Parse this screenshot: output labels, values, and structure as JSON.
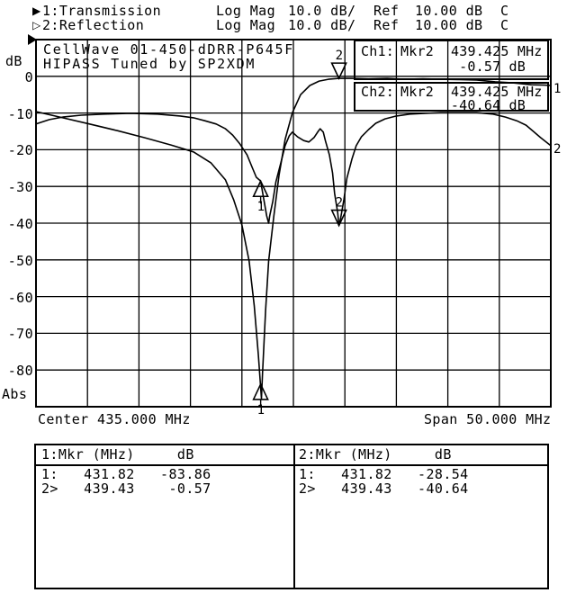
{
  "header": {
    "rows": [
      {
        "icon_glyph": "▶",
        "icon_name": "filled-right-triangle",
        "label": "1:Transmission",
        "format": "Log Mag",
        "scale": "10.0 dB/",
        "ref_label": "Ref",
        "ref_value": "10.00 dB",
        "status": "C"
      },
      {
        "icon_glyph": "▷",
        "icon_name": "open-right-triangle",
        "label": "2:Reflection",
        "format": "Log Mag",
        "scale": "10.0 dB/",
        "ref_label": "Ref",
        "ref_value": "10.00 dB",
        "status": "C"
      }
    ]
  },
  "plot": {
    "title_line1": "CellWave 01-450-dDRR-P645F",
    "title_line2": "HIPASS Tuned by SP2XDM",
    "y_axis_unit": "dB",
    "y_axis_bottom_label": "Abs",
    "x_axis_left": "Center 435.000 MHz",
    "x_axis_right": "Span 50.000 MHz",
    "annotations": [
      {
        "ch": "Ch1:",
        "mkr": "Mkr2",
        "freq": "439.425 MHz",
        "value": "-0.57 dB"
      },
      {
        "ch": "Ch2:",
        "mkr": "Mkr2",
        "freq": "439.425 MHz",
        "value": "-40.64 dB"
      }
    ]
  },
  "marker_table": {
    "left": {
      "header": "1:Mkr (MHz)     dB",
      "rows": [
        "1:   431.82   -83.86",
        "2>   439.43    -0.57"
      ]
    },
    "right": {
      "header": "2:Mkr (MHz)     dB",
      "rows": [
        "1:   431.82   -28.54",
        "2>   439.43   -40.64"
      ]
    }
  },
  "colors": {
    "foreground": "#000000",
    "background": "#ffffff"
  },
  "chart_data": {
    "type": "line",
    "title": "CellWave 01-450-dDRR-P645F HIPASS Tuned by SP2XDM",
    "x_axis": {
      "label_left": "Center 435.000 MHz",
      "label_right": "Span 50.000 MHz",
      "center_MHz": 435.0,
      "span_MHz": 50.0,
      "min_MHz": 410.0,
      "max_MHz": 460.0,
      "divisions": 10
    },
    "y_axis": {
      "unit": "dB",
      "abs_label": "Abs",
      "ref_dB": 10.0,
      "scale_dB_per_div": 10.0,
      "top_dB": 10,
      "bottom_dB": -90,
      "divisions": 10,
      "tick_labels": [
        0,
        -10,
        -20,
        -30,
        -40,
        -50,
        -60,
        -70,
        -80
      ]
    },
    "grid": true,
    "series": [
      {
        "name": "Transmission",
        "end_label": "1",
        "points": [
          [
            410,
            -9.6
          ],
          [
            412.6,
            -11.3
          ],
          [
            415.2,
            -13
          ],
          [
            417.9,
            -14.8
          ],
          [
            420.5,
            -16.7
          ],
          [
            423.1,
            -18.7
          ],
          [
            425.3,
            -20.6
          ],
          [
            427,
            -23.6
          ],
          [
            428.4,
            -28.2
          ],
          [
            429.2,
            -33.6
          ],
          [
            430,
            -40.5
          ],
          [
            430.7,
            -50.3
          ],
          [
            431.2,
            -62.5
          ],
          [
            431.6,
            -76
          ],
          [
            431.9,
            -87.8
          ],
          [
            432,
            -80.9
          ],
          [
            432.3,
            -63.8
          ],
          [
            432.6,
            -50.3
          ],
          [
            433.1,
            -38
          ],
          [
            433.6,
            -27
          ],
          [
            434.2,
            -17.2
          ],
          [
            434.9,
            -9.9
          ],
          [
            435.7,
            -5
          ],
          [
            436.6,
            -2.5
          ],
          [
            437.5,
            -1.3
          ],
          [
            438.4,
            -0.8
          ],
          [
            439.425,
            -0.57
          ],
          [
            440.6,
            -0.54
          ],
          [
            442.3,
            -0.66
          ],
          [
            444.1,
            -0.54
          ],
          [
            445.8,
            -0.8
          ],
          [
            447.6,
            -0.66
          ],
          [
            449.3,
            -0.8
          ],
          [
            451.1,
            -0.9
          ],
          [
            452.8,
            -1
          ],
          [
            454.6,
            -1.5
          ],
          [
            456.3,
            -1.8
          ],
          [
            458.1,
            -2.3
          ],
          [
            459.4,
            -2.4
          ],
          [
            460,
            -2.5
          ]
        ]
      },
      {
        "name": "Reflection",
        "end_label": "2",
        "points": [
          [
            410,
            -13
          ],
          [
            411.3,
            -11.8
          ],
          [
            412.6,
            -11.1
          ],
          [
            414.4,
            -10.6
          ],
          [
            416.6,
            -10.3
          ],
          [
            419.2,
            -10.1
          ],
          [
            421.8,
            -10.3
          ],
          [
            424,
            -10.8
          ],
          [
            425.3,
            -11.3
          ],
          [
            426.4,
            -12.1
          ],
          [
            427.5,
            -13
          ],
          [
            428.4,
            -14.3
          ],
          [
            429.1,
            -16
          ],
          [
            429.8,
            -18.4
          ],
          [
            430.5,
            -21.4
          ],
          [
            431,
            -24.8
          ],
          [
            431.4,
            -27.5
          ],
          [
            431.82,
            -28.54
          ],
          [
            432.1,
            -33.1
          ],
          [
            432.4,
            -38
          ],
          [
            432.6,
            -40
          ],
          [
            432.7,
            -38
          ],
          [
            433,
            -34.1
          ],
          [
            433.3,
            -28.7
          ],
          [
            433.8,
            -23.3
          ],
          [
            434.2,
            -18.9
          ],
          [
            434.6,
            -16.2
          ],
          [
            434.9,
            -15.2
          ],
          [
            435.4,
            -16.5
          ],
          [
            436,
            -17.5
          ],
          [
            436.5,
            -17.9
          ],
          [
            437,
            -16.7
          ],
          [
            437.4,
            -15
          ],
          [
            437.6,
            -14.3
          ],
          [
            437.9,
            -15.2
          ],
          [
            438.1,
            -17.5
          ],
          [
            438.5,
            -21.4
          ],
          [
            438.8,
            -26.3
          ],
          [
            439,
            -31.9
          ],
          [
            439.3,
            -37.1
          ],
          [
            439.425,
            -40.64
          ],
          [
            439.6,
            -38.5
          ],
          [
            439.9,
            -33.6
          ],
          [
            440.2,
            -27.7
          ],
          [
            440.7,
            -22.4
          ],
          [
            441.1,
            -18.9
          ],
          [
            441.6,
            -16.5
          ],
          [
            442.3,
            -14.5
          ],
          [
            443,
            -12.8
          ],
          [
            443.9,
            -11.6
          ],
          [
            445,
            -10.8
          ],
          [
            446.3,
            -10.3
          ],
          [
            447.8,
            -10.1
          ],
          [
            449.3,
            -9.9
          ],
          [
            451.1,
            -9.9
          ],
          [
            452.8,
            -9.9
          ],
          [
            454.4,
            -10.3
          ],
          [
            455.6,
            -11.1
          ],
          [
            456.7,
            -12.1
          ],
          [
            457.6,
            -13.3
          ],
          [
            458.3,
            -15
          ],
          [
            459,
            -16.7
          ],
          [
            459.6,
            -18
          ],
          [
            460,
            -18.9
          ]
        ]
      }
    ],
    "markers": [
      {
        "channel": 1,
        "marker": "1",
        "MHz": 431.82,
        "dB": -83.86,
        "shape": "triangle-up",
        "label_pos": "below"
      },
      {
        "channel": 1,
        "marker": "2",
        "MHz": 439.425,
        "dB": -0.57,
        "shape": "triangle-down",
        "label_pos": "above"
      },
      {
        "channel": 2,
        "marker": "1",
        "MHz": 431.82,
        "dB": -28.54,
        "shape": "triangle-up",
        "label_pos": "below"
      },
      {
        "channel": 2,
        "marker": "2",
        "MHz": 439.425,
        "dB": -40.64,
        "shape": "triangle-down",
        "label_pos": "above"
      }
    ]
  }
}
